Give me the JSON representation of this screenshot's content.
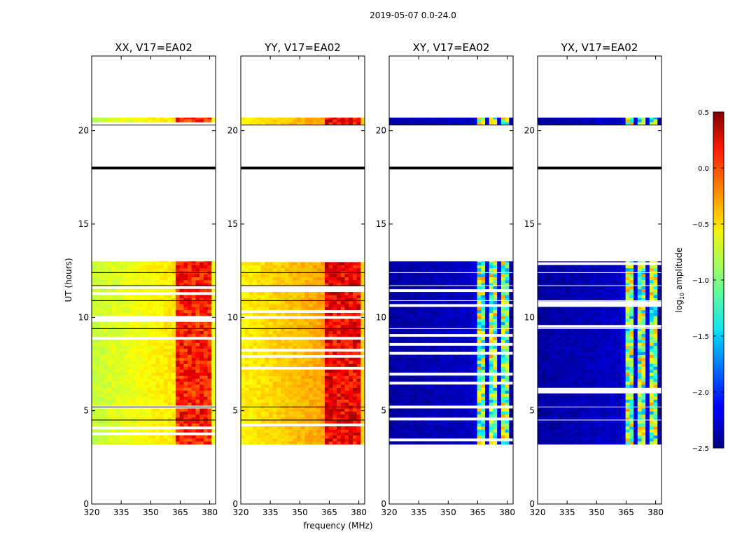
{
  "figure": {
    "suptitle": "2019-05-07 0.0-24.0",
    "xlabel": "frequency (MHz)",
    "ylabel": "UT (hours)",
    "colorbar_label_prefix": "log",
    "colorbar_label_sub": "10",
    "colorbar_label_suffix": " amplitude"
  },
  "chart_data": {
    "type": "heatmap",
    "title": "2019-05-07 0.0-24.0",
    "xlabel": "frequency (MHz)",
    "ylabel": "UT (hours)",
    "xlim": [
      320,
      383
    ],
    "ylim": [
      0,
      24
    ],
    "xticks": [
      320,
      335,
      350,
      365,
      380
    ],
    "yticks": [
      0,
      5,
      10,
      15,
      20
    ],
    "colorbar": {
      "label": "log10 amplitude",
      "range": [
        -2.5,
        0.5
      ],
      "ticks": [
        "0.5",
        "0.0",
        "−0.5",
        "−1.0",
        "−1.5",
        "−2.0",
        "−2.5"
      ],
      "tick_values": [
        0.5,
        0.0,
        -0.5,
        -1.0,
        -1.5,
        -2.0,
        -2.5
      ],
      "colormap": "jet"
    },
    "data_time_ranges_hours": [
      [
        3.2,
        13.0
      ],
      [
        20.3,
        20.7
      ]
    ],
    "gap_line_hours": 18.0,
    "rfi_band_mhz": [
      362,
      380
    ],
    "panels": [
      {
        "title": "XX, V17=EA02",
        "base_level": -0.8,
        "band_level": 0.05
      },
      {
        "title": "YY, V17=EA02",
        "base_level": -0.6,
        "band_level": 0.15
      },
      {
        "title": "XY, V17=EA02",
        "base_level": -2.4,
        "band_level": -1.0
      },
      {
        "title": "YX, V17=EA02",
        "base_level": -2.4,
        "band_level": -1.0
      }
    ]
  }
}
